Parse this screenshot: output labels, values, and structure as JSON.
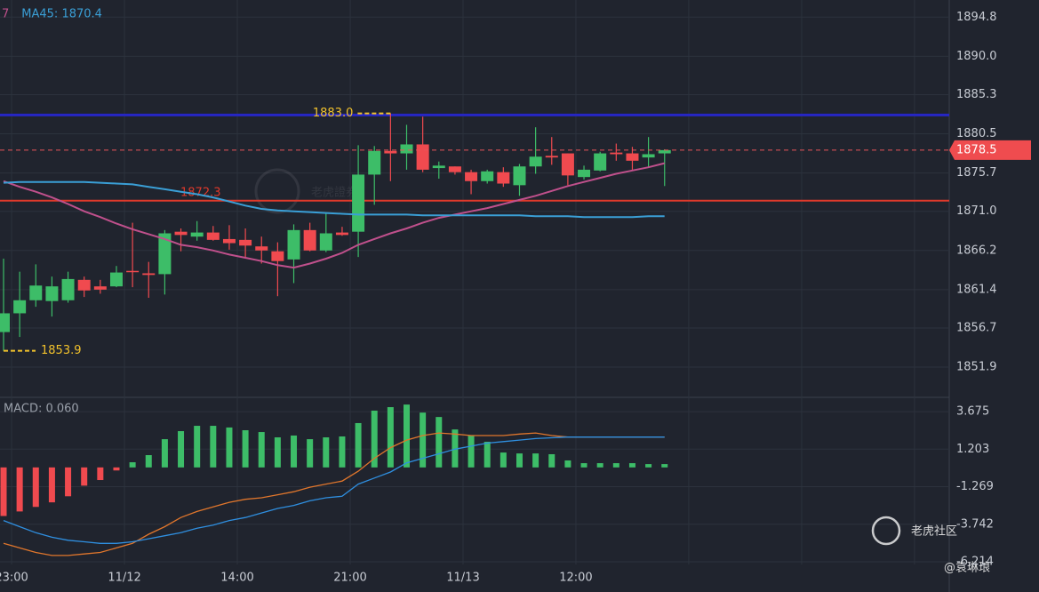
{
  "chart_data": [
    {
      "type": "candlestick",
      "categories": [
        null,
        "23:00",
        null,
        null,
        null,
        null,
        null,
        null,
        "11/12",
        null,
        null,
        null,
        null,
        null,
        null,
        "14:00",
        null,
        null,
        null,
        null,
        null,
        null,
        "21:00",
        null,
        null,
        null,
        null,
        null,
        null,
        "11/13",
        null,
        null,
        null,
        null,
        null,
        null,
        "12:00",
        null,
        null,
        null,
        null,
        null
      ],
      "open": [
        1856.2,
        1858.5,
        1860.1,
        1860.0,
        1860.1,
        1862.6,
        1861.8,
        1861.8,
        1863.7,
        1863.4,
        1863.3,
        1868.5,
        1867.9,
        1868.4,
        1867.6,
        1867.5,
        1866.7,
        1866.1,
        1865.1,
        1868.7,
        1866.2,
        1868.4,
        1868.5,
        1875.5,
        1878.4,
        1878.1,
        1879.2,
        1876.3,
        1876.5,
        1875.8,
        1874.7,
        1875.8,
        1874.2,
        1876.5,
        1877.8,
        1878.1,
        1875.2,
        1876.0,
        1878.2,
        1878.1,
        1877.6,
        1878.1
      ],
      "high": [
        1865.2,
        1863.6,
        1864.5,
        1863.0,
        1863.6,
        1863.0,
        1862.6,
        1864.3,
        1869.6,
        1864.8,
        1868.7,
        1868.9,
        1869.8,
        1869.2,
        1869.3,
        1868.9,
        1867.9,
        1867.2,
        1869.4,
        1869.6,
        1870.7,
        1869.1,
        1879.1,
        1879.0,
        1883.0,
        1881.6,
        1882.6,
        1877.1,
        1876.5,
        1876.1,
        1876.1,
        1876.4,
        1876.8,
        1881.3,
        1880.1,
        1878.1,
        1876.6,
        1878.3,
        1879.3,
        1878.9,
        1880.1,
        1878.6
      ],
      "low": [
        1853.9,
        1855.6,
        1859.3,
        1858.1,
        1859.8,
        1860.5,
        1860.9,
        1861.7,
        1861.7,
        1860.4,
        1860.8,
        1866.1,
        1867.4,
        1867.4,
        1866.3,
        1865.2,
        1864.6,
        1860.6,
        1862.2,
        1866.1,
        1866.0,
        1868.0,
        1865.4,
        1871.8,
        1874.7,
        1876.1,
        1875.8,
        1875.0,
        1875.5,
        1873.1,
        1874.4,
        1874.0,
        1872.9,
        1875.6,
        1876.7,
        1874.2,
        1874.9,
        1875.9,
        1877.2,
        1876.1,
        1876.4,
        1874.1
      ],
      "close": [
        1858.5,
        1860.1,
        1861.9,
        1861.8,
        1862.7,
        1861.3,
        1861.4,
        1863.5,
        1863.6,
        1863.2,
        1868.3,
        1868.1,
        1868.4,
        1867.5,
        1867.1,
        1866.8,
        1866.2,
        1864.9,
        1868.7,
        1866.2,
        1868.3,
        1868.1,
        1875.5,
        1878.4,
        1878.1,
        1879.2,
        1876.1,
        1876.6,
        1875.8,
        1874.7,
        1875.9,
        1874.4,
        1876.5,
        1877.7,
        1877.6,
        1875.4,
        1876.1,
        1878.1,
        1878.0,
        1877.2,
        1878.0,
        1878.5
      ],
      "up_color": "#3dbd68",
      "down_color": "#f04a4f",
      "series": [
        {
          "name": "7",
          "color": "#c0508c",
          "values": [
            1874.7,
            1874.0,
            1873.4,
            1872.7,
            1871.9,
            1871.0,
            1870.3,
            1869.5,
            1868.8,
            1868.2,
            1867.6,
            1866.9,
            1866.6,
            1866.2,
            1865.7,
            1865.3,
            1864.9,
            1864.4,
            1864.1,
            1864.6,
            1865.2,
            1865.9,
            1866.9,
            1867.6,
            1868.3,
            1868.9,
            1869.6,
            1870.2,
            1870.6,
            1871.0,
            1871.4,
            1871.9,
            1872.4,
            1872.9,
            1873.5,
            1874.1,
            1874.6,
            1875.1,
            1875.6,
            1876.0,
            1876.4,
            1876.9
          ]
        },
        {
          "name": "MA45: 1870.4",
          "color": "#3a9fd6",
          "values": [
            1874.5,
            1874.6,
            1874.6,
            1874.6,
            1874.6,
            1874.6,
            1874.5,
            1874.4,
            1874.3,
            1874.0,
            1873.7,
            1873.4,
            1873.1,
            1872.7,
            1872.2,
            1871.7,
            1871.3,
            1871.1,
            1871.0,
            1870.9,
            1870.8,
            1870.7,
            1870.6,
            1870.6,
            1870.6,
            1870.6,
            1870.5,
            1870.5,
            1870.5,
            1870.5,
            1870.5,
            1870.5,
            1870.5,
            1870.4,
            1870.4,
            1870.4,
            1870.3,
            1870.3,
            1870.3,
            1870.3,
            1870.4,
            1870.4
          ]
        }
      ],
      "ylim": [
        1848.2,
        1896.9
      ],
      "yticks": [
        1894.8,
        {
          "value": 1890,
          "label": "1890.0"
        },
        1885.3,
        1880.5,
        1875.7,
        {
          "value": 1871,
          "label": "1871.0"
        },
        1866.2,
        1861.4,
        1856.7,
        1851.9
      ],
      "grid": true,
      "high_mark": {
        "value": 1883,
        "label": "1883.0"
      },
      "low_mark": 1853.9,
      "resistance_line": 1882.8,
      "support_line": 1872.3,
      "last_price": 1878.5,
      "watermark": "老虎證券"
    },
    {
      "type": "macd",
      "title": "MACD: 0.060",
      "values": [
        -3.2,
        -2.9,
        -2.6,
        -2.3,
        -1.9,
        -1.2,
        -0.83,
        -0.2,
        0.34,
        0.81,
        1.86,
        2.39,
        2.74,
        2.74,
        2.63,
        2.45,
        2.33,
        1.98,
        2.1,
        1.86,
        1.98,
        2.04,
        2.92,
        3.74,
        3.97,
        4.14,
        3.61,
        3.32,
        2.5,
        2.1,
        1.69,
        0.98,
        0.92,
        0.92,
        0.87,
        0.46,
        0.28,
        0.28,
        0.28,
        0.28,
        0.22,
        0.22
      ],
      "up_color": "#3dbd68",
      "down_color": "#f04a4f",
      "series": [
        {
          "color": "#e0762c",
          "values": [
            -5.0,
            -5.3,
            -5.6,
            -5.8,
            -5.8,
            -5.7,
            -5.6,
            -5.3,
            -5.0,
            -4.4,
            -3.9,
            -3.3,
            -2.9,
            -2.6,
            -2.3,
            -2.1,
            -2.0,
            -1.8,
            -1.6,
            -1.3,
            -1.1,
            -0.9,
            -0.25,
            0.6,
            1.3,
            1.8,
            2.1,
            2.27,
            2.2,
            2.1,
            2.1,
            2.1,
            2.2,
            2.27,
            2.1,
            2.0,
            2.0,
            2.0,
            2.0,
            2.0,
            2.0,
            2.0
          ]
        },
        {
          "color": "#2f8fe0",
          "values": [
            -3.5,
            -3.9,
            -4.3,
            -4.6,
            -4.8,
            -4.9,
            -5.0,
            -5.0,
            -4.9,
            -4.7,
            -4.5,
            -4.3,
            -4.0,
            -3.8,
            -3.5,
            -3.3,
            -3.0,
            -2.7,
            -2.5,
            -2.2,
            -2.0,
            -1.9,
            -1.1,
            -0.7,
            -0.3,
            0.3,
            0.6,
            0.9,
            1.2,
            1.4,
            1.6,
            1.7,
            1.8,
            1.9,
            1.95,
            2.0,
            2.0,
            2.0,
            2.0,
            2.0,
            2.0,
            2.0
          ]
        }
      ],
      "ylim": [
        -6.39,
        4.44
      ],
      "yticks": [
        3.675,
        1.203,
        -1.269,
        -3.742,
        -6.214
      ],
      "grid": true
    }
  ],
  "overlay": {
    "brand": "老虎社区",
    "author": "@袁琳琅"
  }
}
